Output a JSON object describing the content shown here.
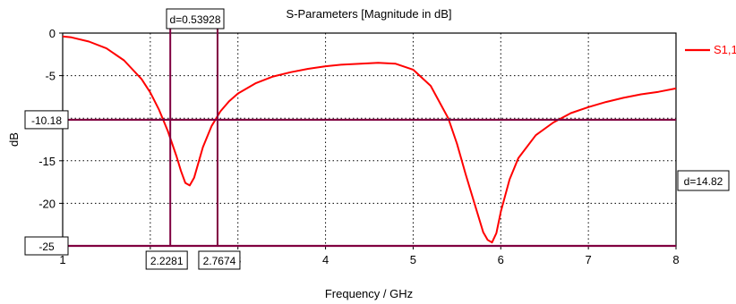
{
  "chart_data": {
    "type": "line",
    "title": "S-Parameters [Magnitude in dB]",
    "xlabel": "Frequency / GHz",
    "ylabel": "dB",
    "xlim": [
      1,
      8
    ],
    "ylim": [
      -25,
      0
    ],
    "x_ticks": [
      "1",
      "2",
      "3",
      "4",
      "5",
      "6",
      "7",
      "8"
    ],
    "y_ticks": [
      "0",
      "-5",
      "-10",
      "-15",
      "-20",
      "-25"
    ],
    "grid": true,
    "legend": "top-right",
    "series": [
      {
        "name": "S1,1",
        "color": "#ff0000",
        "x": [
          1.0,
          1.1,
          1.3,
          1.5,
          1.7,
          1.9,
          2.0,
          2.1,
          2.2,
          2.3,
          2.35,
          2.4,
          2.45,
          2.5,
          2.55,
          2.6,
          2.7,
          2.8,
          2.9,
          3.0,
          3.2,
          3.4,
          3.6,
          3.8,
          4.0,
          4.2,
          4.4,
          4.6,
          4.8,
          5.0,
          5.2,
          5.4,
          5.5,
          5.6,
          5.7,
          5.8,
          5.85,
          5.9,
          5.95,
          6.0,
          6.1,
          6.2,
          6.4,
          6.6,
          6.8,
          7.0,
          7.2,
          7.4,
          7.6,
          7.8,
          8.0
        ],
        "y": [
          -0.4,
          -0.5,
          -1.0,
          -1.8,
          -3.2,
          -5.4,
          -7.0,
          -9.0,
          -11.5,
          -14.5,
          -16.2,
          -17.6,
          -17.9,
          -17.0,
          -15.2,
          -13.4,
          -10.9,
          -9.2,
          -8.0,
          -7.1,
          -5.9,
          -5.1,
          -4.6,
          -4.2,
          -3.9,
          -3.7,
          -3.6,
          -3.5,
          -3.6,
          -4.3,
          -6.2,
          -10.0,
          -13.0,
          -16.6,
          -20.0,
          -23.4,
          -24.3,
          -24.6,
          -23.5,
          -21.0,
          -17.2,
          -14.7,
          -12.0,
          -10.5,
          -9.4,
          -8.7,
          -8.1,
          -7.6,
          -7.2,
          -6.9,
          -6.5
        ]
      }
    ],
    "annotations": {
      "h_markers": [
        {
          "y": -10.18,
          "label": "-10.18",
          "color": "#800040"
        },
        {
          "y": -25,
          "label": "-25",
          "color": "#800040"
        }
      ],
      "v_markers": [
        {
          "x": 2.2281,
          "label": "2.2281",
          "color": "#800040"
        },
        {
          "x": 2.7674,
          "label": "2.7674",
          "color": "#800040"
        }
      ],
      "dx_label": "d=0.53928",
      "dy_label": "d=14.82"
    }
  }
}
